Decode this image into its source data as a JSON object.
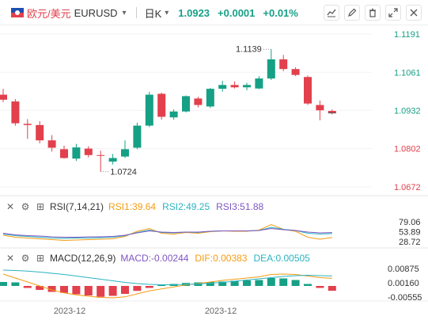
{
  "header": {
    "pair_label": "欧元/美元",
    "symbol": "EURUSD",
    "caret": "▾",
    "period": "日K",
    "price": "1.0923",
    "change": "+0.0001",
    "change_pct": "+0.01%"
  },
  "colors": {
    "up": "#16a085",
    "down": "#e2404c",
    "rsi1": "#f39c12",
    "rsi2": "#2bb3c0",
    "rsi3": "#7e57c2"
  },
  "icons": [
    "chart-line-icon",
    "pencil-icon",
    "trash-icon",
    "expand-icon",
    "close-icon"
  ],
  "chart_data": [
    {
      "type": "candlestick",
      "y_ticks": [
        "1.1191",
        "1.1061",
        "1.0932",
        "1.0802",
        "1.0672"
      ],
      "ylim": [
        1.0645,
        1.1215
      ],
      "x_ticks": [
        "2023-12",
        "2023-12"
      ],
      "annotations": {
        "high": "1.1139",
        "low": "1.0724"
      },
      "candles": [
        {
          "o": 1.0985,
          "h": 1.1005,
          "l": 1.096,
          "c": 1.0968
        },
        {
          "o": 1.0962,
          "h": 1.097,
          "l": 1.088,
          "c": 1.0888
        },
        {
          "o": 1.0886,
          "h": 1.0902,
          "l": 1.0835,
          "c": 1.0882
        },
        {
          "o": 1.0882,
          "h": 1.0895,
          "l": 1.082,
          "c": 1.083
        },
        {
          "o": 1.083,
          "h": 1.0848,
          "l": 1.0792,
          "c": 1.0805
        },
        {
          "o": 1.08,
          "h": 1.0812,
          "l": 1.0768,
          "c": 1.077
        },
        {
          "o": 1.0768,
          "h": 1.0818,
          "l": 1.076,
          "c": 1.0806
        },
        {
          "o": 1.0802,
          "h": 1.081,
          "l": 1.0772,
          "c": 1.078
        },
        {
          "o": 1.078,
          "h": 1.0795,
          "l": 1.0724,
          "c": 1.0778
        },
        {
          "o": 1.0758,
          "h": 1.0784,
          "l": 1.0748,
          "c": 1.077
        },
        {
          "o": 1.0775,
          "h": 1.083,
          "l": 1.077,
          "c": 1.08
        },
        {
          "o": 1.0805,
          "h": 1.089,
          "l": 1.08,
          "c": 1.088
        },
        {
          "o": 1.088,
          "h": 1.0995,
          "l": 1.0875,
          "c": 1.0985
        },
        {
          "o": 1.0988,
          "h": 1.0992,
          "l": 1.09,
          "c": 1.091
        },
        {
          "o": 1.0908,
          "h": 1.0935,
          "l": 1.09,
          "c": 1.0928
        },
        {
          "o": 1.0928,
          "h": 1.0982,
          "l": 1.0925,
          "c": 1.098
        },
        {
          "o": 1.0972,
          "h": 1.0978,
          "l": 1.0942,
          "c": 1.095
        },
        {
          "o": 1.0945,
          "h": 1.1008,
          "l": 1.094,
          "c": 1.1005
        },
        {
          "o": 1.1005,
          "h": 1.1032,
          "l": 1.0995,
          "c": 1.1018
        },
        {
          "o": 1.1018,
          "h": 1.103,
          "l": 1.1006,
          "c": 1.101
        },
        {
          "o": 1.101,
          "h": 1.1025,
          "l": 1.1,
          "c": 1.1018
        },
        {
          "o": 1.1006,
          "h": 1.1048,
          "l": 1.1004,
          "c": 1.104
        },
        {
          "o": 1.104,
          "h": 1.1139,
          "l": 1.1035,
          "c": 1.1105
        },
        {
          "o": 1.1105,
          "h": 1.112,
          "l": 1.1065,
          "c": 1.1072
        },
        {
          "o": 1.1072,
          "h": 1.1078,
          "l": 1.1048,
          "c": 1.1052
        },
        {
          "o": 1.1045,
          "h": 1.105,
          "l": 1.095,
          "c": 1.0955
        },
        {
          "o": 1.095,
          "h": 1.0965,
          "l": 1.0898,
          "c": 1.0932
        },
        {
          "o": 1.093,
          "h": 1.0935,
          "l": 1.0918,
          "c": 1.0923
        }
      ]
    },
    {
      "type": "line",
      "name": "RSI(7,14,21)",
      "legend": {
        "rsi1": "RSI1:39.64",
        "rsi2": "RSI2:49.25",
        "rsi3": "RSI3:51.88"
      },
      "y_ticks": [
        "79.06",
        "53.89",
        "28.72"
      ],
      "ylim": [
        15,
        95
      ],
      "series": [
        {
          "name": "RSI1",
          "values": [
            45,
            40,
            38,
            36,
            34,
            32,
            33,
            34,
            35,
            36,
            42,
            55,
            62,
            50,
            48,
            52,
            50,
            54,
            56,
            55,
            55,
            58,
            72,
            60,
            55,
            40,
            35,
            39.64
          ]
        },
        {
          "name": "RSI2",
          "values": [
            48,
            44,
            42,
            40,
            38,
            37,
            38,
            38,
            39,
            40,
            44,
            52,
            58,
            52,
            51,
            53,
            52,
            55,
            56,
            56,
            56,
            57,
            65,
            60,
            57,
            50,
            48,
            49.25
          ]
        },
        {
          "name": "RSI3",
          "values": [
            50,
            46,
            44,
            43,
            41,
            40,
            40,
            41,
            41,
            42,
            45,
            51,
            56,
            53,
            52,
            53,
            53,
            55,
            56,
            56,
            56,
            57,
            62,
            59,
            57,
            53,
            51,
            51.88
          ]
        }
      ]
    },
    {
      "type": "bar",
      "name": "MACD(12,26,9)",
      "legend": {
        "macd": "MACD:-0.00244",
        "dif": "DIF:0.00383",
        "dea": "DEA:0.00505"
      },
      "y_ticks": [
        "0.00875",
        "0.00160",
        "-0.00555"
      ],
      "ylim": [
        -0.0068,
        0.01
      ],
      "hist": [
        0.002,
        0.0018,
        -0.001,
        -0.002,
        -0.003,
        -0.0035,
        -0.0042,
        -0.0048,
        -0.0055,
        -0.005,
        -0.004,
        -0.0025,
        -0.001,
        0.0005,
        0.001,
        0.0015,
        0.0018,
        0.002,
        0.0022,
        0.0026,
        0.0028,
        0.003,
        0.004,
        0.0038,
        0.003,
        0.001,
        -0.001,
        -0.00244
      ],
      "dif": [
        0.006,
        0.004,
        0.002,
        0.0,
        -0.002,
        -0.0035,
        -0.0045,
        -0.0052,
        -0.0058,
        -0.006,
        -0.0055,
        -0.004,
        -0.0025,
        -0.0015,
        -0.0005,
        0.0005,
        0.0012,
        0.002,
        0.0028,
        0.0034,
        0.004,
        0.0046,
        0.0058,
        0.006,
        0.0058,
        0.005,
        0.0042,
        0.00383
      ],
      "dea": [
        0.008,
        0.0078,
        0.0075,
        0.007,
        0.0064,
        0.0058,
        0.005,
        0.0042,
        0.0034,
        0.0026,
        0.0018,
        0.0012,
        0.0008,
        0.0006,
        0.0006,
        0.0008,
        0.001,
        0.0014,
        0.0018,
        0.0024,
        0.003,
        0.0036,
        0.0042,
        0.0048,
        0.0052,
        0.0054,
        0.0052,
        0.00505
      ]
    }
  ]
}
